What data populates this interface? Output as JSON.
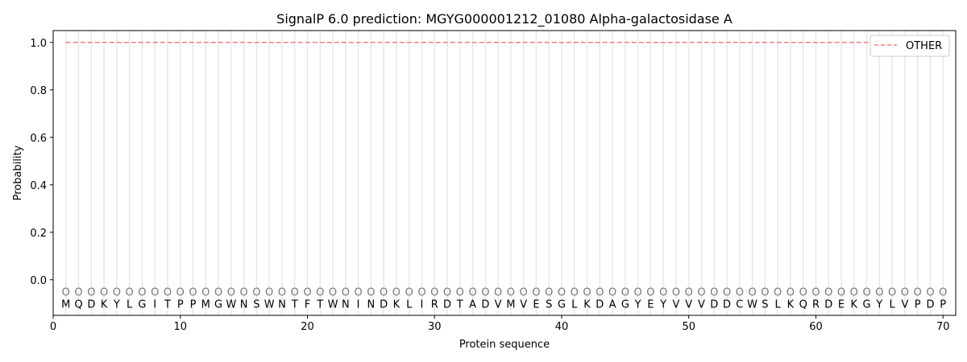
{
  "chart_data": {
    "type": "line",
    "title": "SignalP 6.0 prediction: MGYG000001212_01080 Alpha-galactosidase A",
    "xlabel": "Protein sequence",
    "ylabel": "Probability",
    "xlim": [
      0,
      71
    ],
    "ylim": [
      -0.15,
      1.05
    ],
    "xticks": [
      0,
      10,
      20,
      30,
      40,
      50,
      60,
      70
    ],
    "yticks": [
      "0.0",
      "0.2",
      "0.4",
      "0.6",
      "0.8",
      "1.0"
    ],
    "grid": "vertical lines at each residue",
    "legend_placement": "top-right",
    "sequence": [
      "M",
      "Q",
      "D",
      "K",
      "Y",
      "L",
      "G",
      "I",
      "T",
      "P",
      "P",
      "M",
      "G",
      "W",
      "N",
      "S",
      "W",
      "N",
      "T",
      "F",
      "T",
      "W",
      "N",
      "I",
      "N",
      "D",
      "K",
      "L",
      "I",
      "R",
      "D",
      "T",
      "A",
      "D",
      "V",
      "M",
      "V",
      "E",
      "S",
      "G",
      "L",
      "K",
      "D",
      "A",
      "G",
      "Y",
      "E",
      "Y",
      "V",
      "V",
      "V",
      "D",
      "D",
      "C",
      "W",
      "S",
      "L",
      "K",
      "Q",
      "R",
      "D",
      "E",
      "K",
      "G",
      "Y",
      "L",
      "V",
      "P",
      "D",
      "P"
    ],
    "predicted_label": "O",
    "series": [
      {
        "name": "OTHER",
        "color": "#f08080",
        "style": "dashed",
        "x_range": [
          1,
          70
        ],
        "value": 1.0
      }
    ]
  }
}
